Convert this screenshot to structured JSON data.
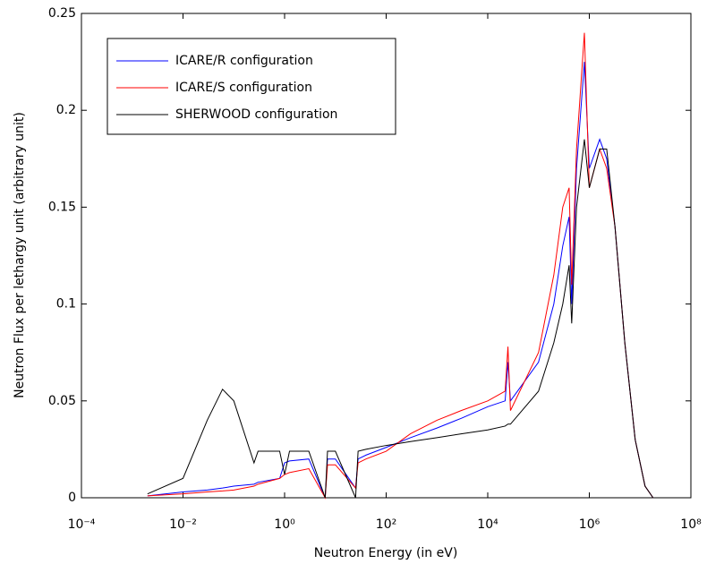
{
  "chart_data": {
    "type": "line",
    "xlabel": "Neutron Energy (in eV)",
    "ylabel": "Neutron Flux per lethargy unit (arbitrary unit)",
    "xscale": "log",
    "xlim": [
      0.0001,
      100000000
    ],
    "xticks": [
      {
        "value": 0.0001,
        "label": "10⁻⁴"
      },
      {
        "value": 0.01,
        "label": "10⁻²"
      },
      {
        "value": 1,
        "label": "10⁰"
      },
      {
        "value": 100,
        "label": "10²"
      },
      {
        "value": 10000,
        "label": "10⁴"
      },
      {
        "value": 1000000,
        "label": "10⁶"
      },
      {
        "value": 100000000,
        "label": "10⁸"
      }
    ],
    "ylim": [
      0,
      0.25
    ],
    "yticks": [
      0,
      0.05,
      0.1,
      0.15,
      0.2,
      0.25
    ],
    "legend": "upper left",
    "x": [
      0.002,
      0.01,
      0.03,
      0.06,
      0.1,
      0.25,
      0.3,
      0.8,
      1,
      1.25,
      3,
      6.3,
      7,
      10,
      25,
      28,
      40,
      100,
      300,
      1000,
      3000,
      10000,
      22000,
      25000,
      28000,
      100000,
      200000,
      300000,
      400000,
      450000,
      560000,
      800000,
      1000000,
      1600000,
      2200000,
      3200000,
      5000000,
      8000000,
      12500000,
      18000000
    ],
    "series": [
      {
        "name": "ICARE/R configuration",
        "color": "#0000ff",
        "values": [
          0.001,
          0.003,
          0.004,
          0.005,
          0.006,
          0.007,
          0.008,
          0.01,
          0.018,
          0.019,
          0.02,
          0,
          0.02,
          0.02,
          0.005,
          0.02,
          0.022,
          0.026,
          0.031,
          0.036,
          0.041,
          0.047,
          0.05,
          0.07,
          0.05,
          0.07,
          0.1,
          0.13,
          0.145,
          0.1,
          0.17,
          0.225,
          0.17,
          0.185,
          0.175,
          0.14,
          0.08,
          0.03,
          0.006,
          0
        ]
      },
      {
        "name": "ICARE/S configuration",
        "color": "#ff0000",
        "values": [
          0.001,
          0.002,
          0.003,
          0.0035,
          0.004,
          0.006,
          0.007,
          0.01,
          0.012,
          0.013,
          0.015,
          0,
          0.017,
          0.017,
          0.005,
          0.018,
          0.02,
          0.024,
          0.033,
          0.04,
          0.045,
          0.05,
          0.055,
          0.078,
          0.045,
          0.075,
          0.115,
          0.15,
          0.16,
          0.11,
          0.18,
          0.24,
          0.16,
          0.18,
          0.17,
          0.14,
          0.08,
          0.03,
          0.006,
          0
        ]
      },
      {
        "name": "SHERWOOD configuration",
        "color": "#000000",
        "values": [
          0.002,
          0.01,
          0.04,
          0.056,
          0.05,
          0.018,
          0.024,
          0.024,
          0.012,
          0.024,
          0.024,
          0,
          0.024,
          0.024,
          0,
          0.024,
          0.025,
          0.027,
          0.029,
          0.031,
          0.033,
          0.035,
          0.037,
          0.038,
          0.038,
          0.055,
          0.08,
          0.1,
          0.12,
          0.09,
          0.15,
          0.185,
          0.16,
          0.18,
          0.18,
          0.14,
          0.08,
          0.03,
          0.006,
          0
        ]
      }
    ]
  }
}
